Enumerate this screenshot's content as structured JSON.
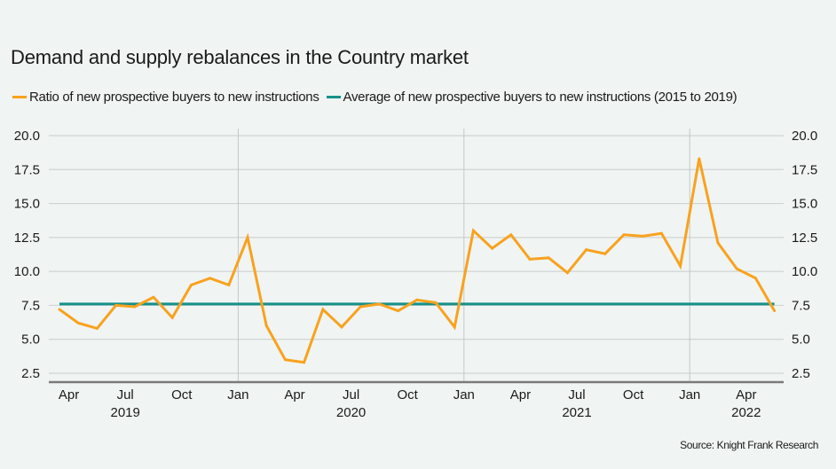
{
  "chart_data": {
    "type": "line",
    "title": "Demand and supply rebalances in the Country market",
    "xlabel": "",
    "ylabel": "",
    "ylim": [
      2.5,
      20.0
    ],
    "yticks": [
      "20.0",
      "17.5",
      "15.0",
      "12.5",
      "10.0",
      "7.5",
      "5.0",
      "2.5"
    ],
    "ytick_values": [
      20.0,
      17.5,
      15.0,
      12.5,
      10.0,
      7.5,
      5.0,
      2.5
    ],
    "grid": true,
    "legend_position": "top-left",
    "x": [
      "Mar 2019",
      "Apr 2019",
      "May 2019",
      "Jun 2019",
      "Jul 2019",
      "Aug 2019",
      "Sep 2019",
      "Oct 2019",
      "Nov 2019",
      "Dec 2019",
      "Jan 2020",
      "Feb 2020",
      "Mar 2020",
      "Apr 2020",
      "May 2020",
      "Jun 2020",
      "Jul 2020",
      "Aug 2020",
      "Sep 2020",
      "Oct 2020",
      "Nov 2020",
      "Dec 2020",
      "Jan 2021",
      "Feb 2021",
      "Mar 2021",
      "Apr 2021",
      "May 2021",
      "Jun 2021",
      "Jul 2021",
      "Aug 2021",
      "Sep 2021",
      "Oct 2021",
      "Nov 2021",
      "Dec 2021",
      "Jan 2022",
      "Feb 2022",
      "Mar 2022",
      "Apr 2022",
      "May 2022"
    ],
    "x_tick_labels": [
      {
        "label": "Apr",
        "month_index": 1
      },
      {
        "label": "Jul",
        "month_index": 4
      },
      {
        "label": "Oct",
        "month_index": 7
      },
      {
        "label": "Jan",
        "month_index": 10
      },
      {
        "label": "Apr",
        "month_index": 13
      },
      {
        "label": "Jul",
        "month_index": 16
      },
      {
        "label": "Oct",
        "month_index": 19
      },
      {
        "label": "Jan",
        "month_index": 22
      },
      {
        "label": "Apr",
        "month_index": 25
      },
      {
        "label": "Jul",
        "month_index": 28
      },
      {
        "label": "Oct",
        "month_index": 31
      },
      {
        "label": "Jan",
        "month_index": 34
      },
      {
        "label": "Apr",
        "month_index": 37
      }
    ],
    "year_labels": [
      {
        "label": "2019",
        "month_index": 4
      },
      {
        "label": "2020",
        "month_index": 16
      },
      {
        "label": "2021",
        "month_index": 28
      },
      {
        "label": "2022",
        "month_index": 37
      }
    ],
    "year_boundaries": [
      10,
      22,
      34
    ],
    "series": [
      {
        "name": "Ratio of new prospective buyers to new instructions",
        "color": "#f8a21e",
        "values": [
          7.2,
          6.2,
          5.8,
          7.5,
          7.4,
          8.1,
          6.6,
          9.0,
          9.5,
          9.0,
          12.5,
          6.0,
          3.5,
          3.3,
          7.2,
          5.9,
          7.4,
          7.6,
          7.1,
          7.9,
          7.7,
          5.9,
          13.0,
          11.7,
          12.7,
          10.9,
          11.0,
          9.9,
          11.6,
          11.3,
          12.7,
          12.6,
          12.8,
          10.4,
          18.3,
          12.1,
          10.2,
          9.5,
          7.1
        ]
      },
      {
        "name": "Average of new prospective buyers to new instructions (2015 to 2019)",
        "color": "#13918a",
        "constant": 7.6
      }
    ],
    "source": "Source: Knight Frank Research"
  },
  "colors": {
    "background": "#f0f4f3",
    "grid": "#cfd3d2",
    "axis": "#7a7a7a"
  }
}
